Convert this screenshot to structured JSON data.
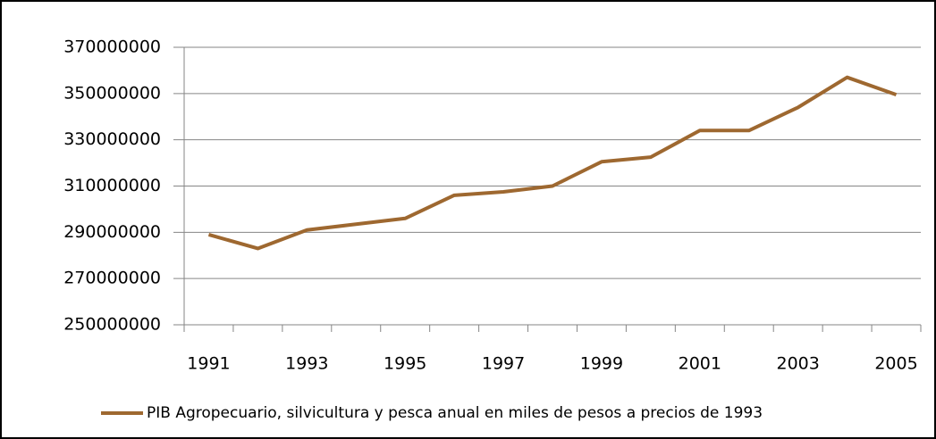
{
  "chart_data": {
    "type": "line",
    "categories": [
      "1991",
      null,
      "1993",
      null,
      "1995",
      null,
      "1997",
      null,
      "1999",
      null,
      "2001",
      null,
      "2003",
      null,
      "2005"
    ],
    "series": [
      {
        "name": "PIB Agropecuario, silvicultura y pesca anual en miles de pesos a precios de 1993",
        "color": "#9e6830",
        "values": [
          289000000,
          283000000,
          291000000,
          293500000,
          296000000,
          306000000,
          307500000,
          310000000,
          320500000,
          322500000,
          334000000,
          334000000,
          344000000,
          357000000,
          349500000
        ]
      }
    ],
    "ylim": [
      250000000,
      370000000
    ],
    "yticks": [
      250000000,
      270000000,
      290000000,
      310000000,
      330000000,
      350000000,
      370000000
    ],
    "grid": true,
    "legend": "bottom"
  }
}
